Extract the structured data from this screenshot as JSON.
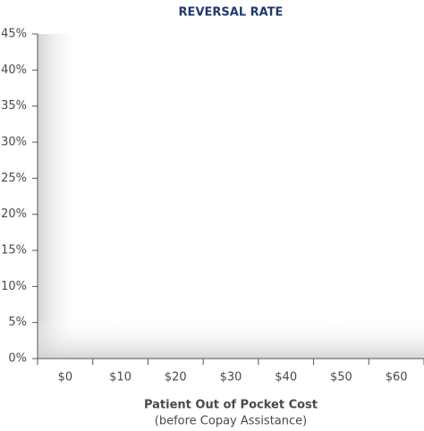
{
  "chart_data": {
    "type": "bar",
    "title": "REVERSAL RATE",
    "categories": [
      "$0",
      "$10",
      "$20",
      "$30",
      "$40",
      "$50",
      "$60"
    ],
    "x_label": "Patient Out of Pocket Cost",
    "x_sublabel": "(before Copay Assistance)",
    "ylim": [
      0,
      45
    ],
    "yticks": [
      {
        "value": 0,
        "label": "0%"
      },
      {
        "value": 5,
        "label": "5%"
      },
      {
        "value": 10,
        "label": "10%"
      },
      {
        "value": 15,
        "label": "15%"
      },
      {
        "value": 20,
        "label": "20%"
      },
      {
        "value": 25,
        "label": "25%"
      },
      {
        "value": 30,
        "label": "30%"
      },
      {
        "value": 35,
        "label": "35%"
      },
      {
        "value": 40,
        "label": "40%"
      },
      {
        "value": 45,
        "label": "45%"
      }
    ],
    "title_color": "#1f3a6e"
  }
}
